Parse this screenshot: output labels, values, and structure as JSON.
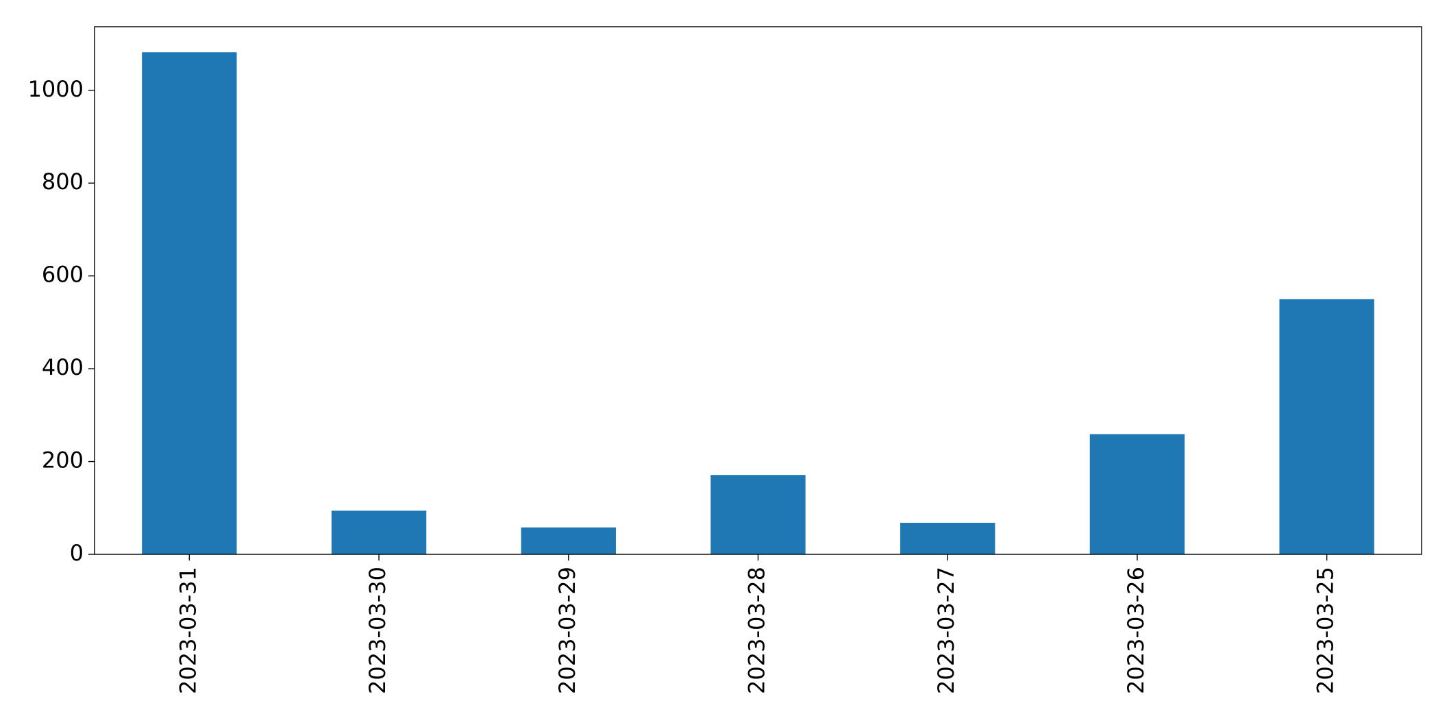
{
  "chart_data": {
    "type": "bar",
    "categories": [
      "2023-03-31",
      "2023-03-30",
      "2023-03-29",
      "2023-03-28",
      "2023-03-27",
      "2023-03-26",
      "2023-03-25"
    ],
    "values": [
      1082,
      94,
      58,
      171,
      68,
      259,
      550
    ],
    "color": "#1f77b4",
    "ylim": [
      0,
      1137
    ],
    "yticks": [
      0,
      200,
      400,
      600,
      800,
      1000
    ],
    "grid": false
  }
}
